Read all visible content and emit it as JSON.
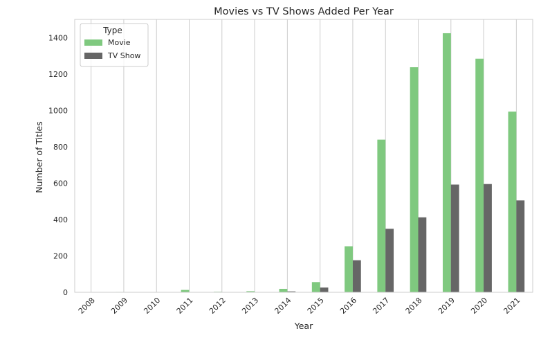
{
  "chart_data": {
    "type": "bar",
    "title": "Movies vs TV Shows Added Per Year",
    "xlabel": "Year",
    "ylabel": "Number of Titles",
    "categories": [
      "2008",
      "2009",
      "2010",
      "2011",
      "2012",
      "2013",
      "2014",
      "2015",
      "2016",
      "2017",
      "2018",
      "2019",
      "2020",
      "2021"
    ],
    "series": [
      {
        "name": "Movie",
        "color": "#7fc97f",
        "values": [
          1,
          2,
          1,
          13,
          3,
          6,
          19,
          56,
          253,
          839,
          1237,
          1424,
          1284,
          993
        ]
      },
      {
        "name": "TV Show",
        "color": "#666666",
        "values": [
          0,
          0,
          0,
          0,
          0,
          0,
          5,
          26,
          176,
          349,
          412,
          592,
          595,
          505
        ]
      }
    ],
    "ylim": [
      0,
      1500
    ],
    "yticks": [
      0,
      200,
      400,
      600,
      800,
      1000,
      1200,
      1400
    ],
    "grid": "vertical",
    "legend": {
      "title": "Type",
      "placement": "top-left"
    }
  }
}
